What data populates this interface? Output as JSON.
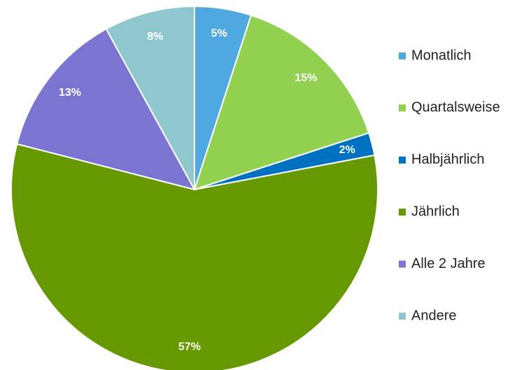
{
  "chart_data": {
    "type": "pie",
    "categories": [
      "Monatlich",
      "Quartalsweise",
      "Halbjährlich",
      "Jährlich",
      "Alle 2 Jahre",
      "Andere"
    ],
    "values": [
      5,
      15,
      2,
      57,
      13,
      8
    ],
    "value_labels": [
      "5%",
      "15%",
      "2%",
      "57%",
      "13%",
      "8%"
    ],
    "colors": [
      "#4fa8e0",
      "#92d050",
      "#0070c0",
      "#669900",
      "#7b74d1",
      "#8fc7cf"
    ],
    "legend": "right"
  }
}
